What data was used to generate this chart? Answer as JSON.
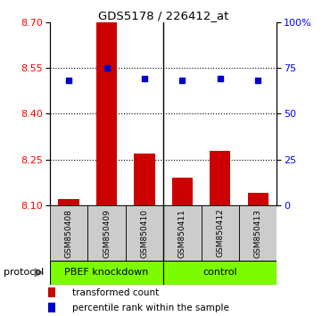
{
  "title": "GDS5178 / 226412_at",
  "categories": [
    "GSM850408",
    "GSM850409",
    "GSM850410",
    "GSM850411",
    "GSM850412",
    "GSM850413"
  ],
  "bar_values": [
    8.12,
    8.7,
    8.27,
    8.19,
    8.28,
    8.14
  ],
  "percentile_values": [
    68,
    75,
    69,
    68,
    69,
    68
  ],
  "ylim_left": [
    8.1,
    8.7
  ],
  "ylim_right": [
    0,
    100
  ],
  "yticks_left": [
    8.1,
    8.25,
    8.4,
    8.55,
    8.7
  ],
  "yticks_right": [
    0,
    25,
    50,
    75,
    100
  ],
  "bar_color": "#cc0000",
  "dot_color": "#0000cc",
  "group1_label": "PBEF knockdown",
  "group2_label": "control",
  "group1_bg": "#7CFC00",
  "group2_bg": "#7CFC00",
  "sample_bg": "#cccccc",
  "legend_bar_label": "transformed count",
  "legend_dot_label": "percentile rank within the sample",
  "protocol_label": "protocol"
}
